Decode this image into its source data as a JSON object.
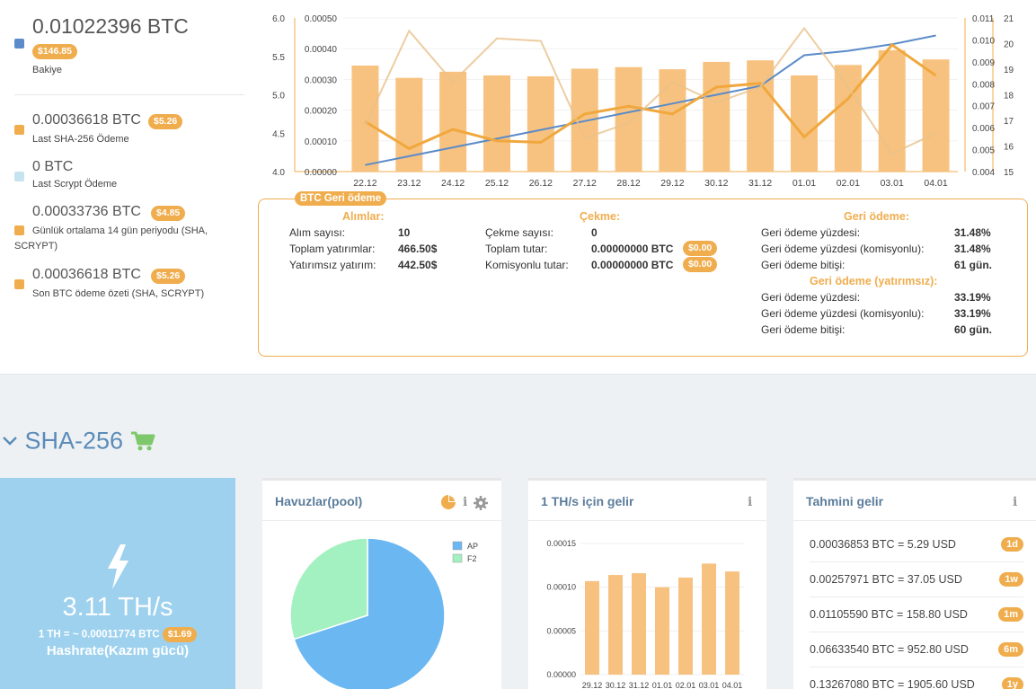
{
  "balance": {
    "amount": "0.01022396 BTC",
    "usd": "$146.85",
    "label": "Bakiye",
    "color": "#5b8bc9"
  },
  "stats": [
    {
      "amount": "0.00036618 BTC",
      "usd": "$5.26",
      "label": "Last SHA-256 Ödeme",
      "color": "#f0ad4e"
    },
    {
      "amount": "0 BTC",
      "usd": "",
      "label": "Last Scrypt Ödeme",
      "color": "#c6e3ef"
    },
    {
      "amount": "0.00033736 BTC",
      "usd": "$4.85",
      "label": "Günlük ortalama 14 gün periyodu (SHA, SCRYPT)",
      "color": "#f0ad4e"
    },
    {
      "amount": "0.00036618 BTC",
      "usd": "$5.26",
      "label": "Son BTC ödeme özeti (SHA, SCRYPT)",
      "color": "#f0ad4e"
    }
  ],
  "chart_data": [
    {
      "type": "bar",
      "categories": [
        "22.12",
        "23.12",
        "24.12",
        "25.12",
        "26.12",
        "27.12",
        "28.12",
        "29.12",
        "30.12",
        "31.12",
        "01.01",
        "02.01",
        "03.01",
        "04.01"
      ],
      "axes": {
        "left1": {
          "ticks": [
            "6.0",
            "5.5",
            "5.0",
            "4.5",
            "4.0"
          ],
          "range": [
            4.0,
            6.0
          ]
        },
        "left2": {
          "ticks": [
            "0.00050",
            "0.00040",
            "0.00030",
            "0.00020",
            "0.00010",
            "0.00000"
          ],
          "range": [
            0,
            0.0005
          ]
        },
        "right1": {
          "ticks": [
            "0.011",
            "0.010",
            "0.009",
            "0.008",
            "0.007",
            "0.006",
            "0.005",
            "0.004"
          ],
          "range": [
            0.004,
            0.011
          ]
        },
        "right2": {
          "ticks": [
            "21",
            "20",
            "19",
            "18",
            "17",
            "16",
            "15"
          ],
          "range": [
            15,
            21
          ]
        }
      },
      "series": [
        {
          "values": [
            0.000345,
            0.000305,
            0.000325,
            0.000313,
            0.00031,
            0.000335,
            0.00034,
            0.000333,
            0.000357,
            0.000362,
            0.000313,
            0.000347,
            0.000395,
            0.000365
          ],
          "axis": "left2",
          "kind": "bar",
          "color": "#f7c27f"
        },
        {
          "values": [
            0.0043,
            0.0047,
            0.0051,
            0.0055,
            0.0059,
            0.0063,
            0.0067,
            0.0071,
            0.0075,
            0.0079,
            0.0093,
            0.0095,
            0.0098,
            0.0102
          ],
          "axis": "right1",
          "kind": "line",
          "color": "#5b8bc9"
        },
        {
          "values": [
            4.65,
            4.3,
            4.55,
            4.4,
            4.38,
            4.75,
            4.85,
            4.75,
            5.1,
            5.15,
            4.45,
            4.95,
            5.65,
            5.25
          ],
          "axis": "left1",
          "kind": "line",
          "color": "#f0a83e"
        },
        {
          "values": [
            16.8,
            20.5,
            18.5,
            20.2,
            20.1,
            16.3,
            16.9,
            18.5,
            17.7,
            18.3,
            20.6,
            18.3,
            15.7,
            16.5
          ],
          "axis": "right2",
          "kind": "line",
          "color": "#e8c08a"
        }
      ]
    },
    {
      "type": "pie",
      "categories": [
        "AP",
        "F2"
      ],
      "values": [
        70,
        30
      ],
      "colors": [
        "#6bb7f2",
        "#a3f0c0"
      ]
    },
    {
      "type": "bar",
      "categories": [
        "29.12",
        "30.12",
        "31.12",
        "01.01",
        "02.01",
        "03.01",
        "04.01"
      ],
      "values": [
        0.000107,
        0.000114,
        0.000116,
        0.0001,
        0.000111,
        0.000127,
        0.000118
      ],
      "yticks": [
        "0.00015",
        "0.00010",
        "0.00005",
        "0.00000"
      ],
      "ylim": [
        0,
        0.00015
      ],
      "color": "#f7c27f"
    }
  ],
  "refund": {
    "title": "BTC Geri ödeme",
    "purchases": {
      "heading": "Alımlar:",
      "rows": [
        {
          "label": "Alım sayısı:",
          "value": "10"
        },
        {
          "label": "Toplam yatırımlar:",
          "value": "466.50$"
        },
        {
          "label": "Yatırımsız yatırım:",
          "value": "442.50$"
        }
      ]
    },
    "withdraw": {
      "heading": "Çekme:",
      "rows": [
        {
          "label": "Çekme sayısı:",
          "value": "0",
          "usd": ""
        },
        {
          "label": "Toplam tutar:",
          "value": "0.00000000 BTC",
          "usd": "$0.00"
        },
        {
          "label": "Komisyonlu tutar:",
          "value": "0.00000000 BTC",
          "usd": "$0.00"
        }
      ]
    },
    "payback": {
      "heading": "Geri ödeme:",
      "rows": [
        {
          "label": "Geri ödeme yüzdesi:",
          "value": "31.48%"
        },
        {
          "label": "Geri ödeme yüzdesi (komisyonlu):",
          "value": "31.48%"
        },
        {
          "label": "Geri ödeme bitişi:",
          "value": "61 gün."
        }
      ],
      "heading2": "Geri ödeme (yatırımsız):",
      "rows2": [
        {
          "label": "Geri ödeme yüzdesi:",
          "value": "33.19%"
        },
        {
          "label": "Geri ödeme yüzdesi (komisyonlu):",
          "value": "33.19%"
        },
        {
          "label": "Geri ödeme bitişi:",
          "value": "60 gün."
        }
      ]
    }
  },
  "section": {
    "title": "SHA-256"
  },
  "hashrate": {
    "value": "3.11 TH/s",
    "rate": "1 TH = ~ 0.00011774 BTC",
    "usd": "$1.69",
    "label": "Hashrate(Kazım gücü)"
  },
  "pools": {
    "title": "Havuzlar(pool)"
  },
  "income_th": {
    "title": "1 TH/s için gelir"
  },
  "estimate": {
    "title": "Tahmini gelir",
    "rows": [
      {
        "text": "0.00036853 BTC = 5.29 USD",
        "badge": "1d"
      },
      {
        "text": "0.00257971 BTC = 37.05 USD",
        "badge": "1w"
      },
      {
        "text": "0.01105590 BTC = 158.80 USD",
        "badge": "1m"
      },
      {
        "text": "0.06633540 BTC = 952.80 USD",
        "badge": "6m"
      },
      {
        "text": "0.13267080 BTC = 1905.60 USD",
        "badge": "1y"
      }
    ]
  }
}
